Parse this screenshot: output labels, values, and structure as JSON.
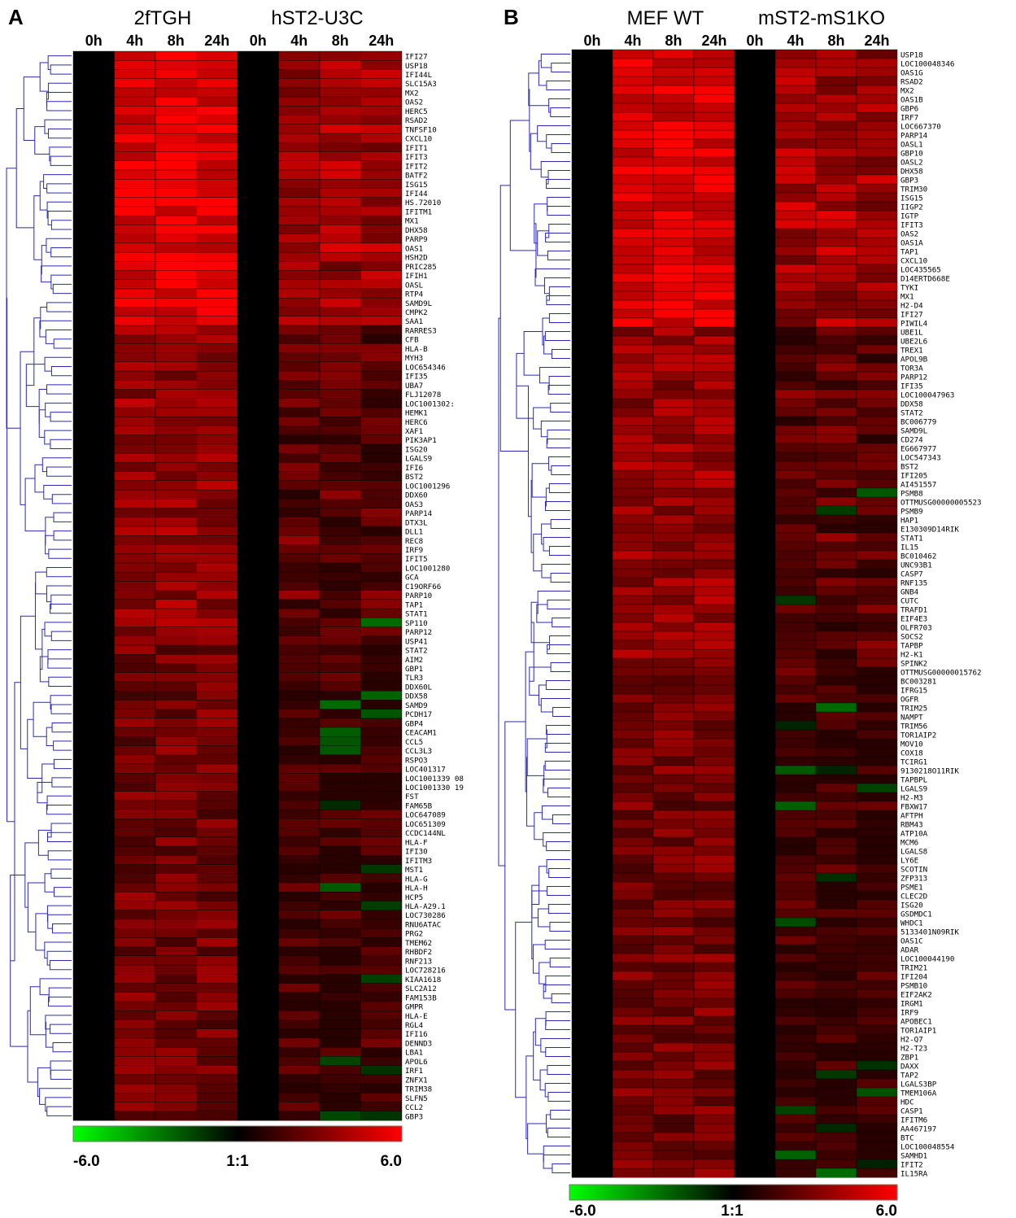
{
  "chart_data": [
    {
      "type": "heatmap",
      "panel": "A",
      "groups": [
        "2fTGH",
        "hST2-U3C"
      ],
      "columns": [
        "0h",
        "4h",
        "8h",
        "24h",
        "0h",
        "4h",
        "8h",
        "24h"
      ],
      "rows": [
        "IFI27",
        "USP18",
        "IFI44L",
        "SLC15A3",
        "MX2",
        "OAS2",
        "HERC5",
        "RSAD2",
        "TNFSF10",
        "CXCL10",
        "IFIT1",
        "IFIT3",
        "IFIT2",
        "BATF2",
        "ISG15",
        "IFI44",
        "HS.72010",
        "IFITM1",
        "MX1",
        "DHX58",
        "PARP9",
        "OAS1",
        "HSH2D",
        "PRIC285",
        "IFIH1",
        "OASL",
        "RTP4",
        "SAMD9L",
        "CMPK2",
        "SAA1",
        "RARRES3",
        "CFB",
        "HLA-B",
        "MYH3",
        "LOC654346",
        "IFI35",
        "UBA7",
        "FLJ12078",
        "LOC1001302:",
        "HEMK1",
        "HERC6",
        "XAF1",
        "PIK3AP1",
        "ISG20",
        "LGALS9",
        "IFI6",
        "BST2",
        "LOC1001296",
        "DDX60",
        "OAS3",
        "PARP14",
        "DTX3L",
        "DLL1",
        "REC8",
        "IRF9",
        "IFIT5",
        "LOC1001280",
        "GCA",
        "C19ORF66",
        "PARP10",
        "TAP1",
        "STAT1",
        "SP110",
        "PARP12",
        "USP41",
        "STAT2",
        "AIM2",
        "GBP1",
        "TLR3",
        "DDX60L",
        "DDX58",
        "SAMD9",
        "PCDH17",
        "GBP4",
        "CEACAM1",
        "CCL5",
        "CCL3L3",
        "RSPO3",
        "LOC401317",
        "LOC1001339 08",
        "LOC1001330 19",
        "FST",
        "FAM65B",
        "LOC647089",
        "LOC651309",
        "CCDC144NL",
        "HLA-F",
        "IFI30",
        "IFITM3",
        "MST1",
        "HLA-G",
        "HLA-H",
        "HCP5",
        "HLA-A29.1",
        "LOC730286",
        "RNU6ATAC",
        "PRG2",
        "TMEM62",
        "RHBDF2",
        "RNF213",
        "LOC728216",
        "KIAA1618",
        "SLC2A12",
        "FAM153B",
        "GMPR",
        "HLA-E",
        "RGL4",
        "IFI16",
        "DENND3",
        "LBA1",
        "APOL6",
        "IRF1",
        "ZNFX1",
        "TRIM38",
        "SLFN5",
        "CCL2",
        "GBP3"
      ],
      "colorscale": {
        "min_label": "-6.0",
        "mid_label": "1:1",
        "max_label": "6.0",
        "min": -6.0,
        "max": 6.0,
        "low_color": "#00ff00",
        "mid_color": "#000000",
        "high_color": "#ff0000"
      }
    },
    {
      "type": "heatmap",
      "panel": "B",
      "groups": [
        "MEF WT",
        "mST2-mS1KO"
      ],
      "columns": [
        "0h",
        "4h",
        "8h",
        "24h",
        "0h",
        "4h",
        "8h",
        "24h"
      ],
      "rows": [
        "USP18",
        "LOC100048346",
        "OAS1G",
        "RSAD2",
        "MX2",
        "OAS1B",
        "GBP6",
        "IRF7",
        "LOC667370",
        "PARP14",
        "OASL1",
        "GBP10",
        "OASL2",
        "DHX58",
        "GBP3",
        "TRIM30",
        "ISG15",
        "IIGP2",
        "IGTP",
        "IFIT3",
        "OAS2",
        "OAS1A",
        "TAP1",
        "CXCL10",
        "LOC435565",
        "D14ERTD668E",
        "TYKI",
        "MX1",
        "H2-D4",
        "IFI27",
        "PIWIL4",
        "UBE1L",
        "UBE2L6",
        "TREX1",
        "APOL9B",
        "TOR3A",
        "PARP12",
        "IFI35",
        "LOC100047963",
        "DDX58",
        "STAT2",
        "BC006779",
        "SAMD9L",
        "CD274",
        "EG667977",
        "LOC547343",
        "BST2",
        "IFI205",
        "AI451557",
        "PSMB8",
        "OTTMUSG00000005523",
        "PSMB9",
        "HAP1",
        "E130309D14RIK",
        "STAT1",
        "IL15",
        "BC010462",
        "UNC93B1",
        "CASP7",
        "RNF135",
        "GNB4",
        "CUTC",
        "TRAFD1",
        "EIF4E3",
        "OLFR703",
        "SOCS2",
        "TAPBP",
        "H2-K1",
        "SPINK2",
        "OTTMUSG00000015762",
        "BC003281",
        "IFRG15",
        "OGFR",
        "TRIM25",
        "NAMPT",
        "TRIM56",
        "TOR1AIP2",
        "MOV10",
        "COX18",
        "TCIRG1",
        "9130218O11RIK",
        "TAPBPL",
        "LGALS9",
        "H2-M3",
        "FBXW17",
        "AFTPH",
        "RBM43",
        "ATP10A",
        "MCM6",
        "LGALS8",
        "LY6E",
        "SCOTIN",
        "ZFP313",
        "PSME1",
        "CLEC2D",
        "ISG20",
        "GSDMDC1",
        "WHDC1",
        "5133401N09RIK",
        "OAS1C",
        "ADAR",
        "LOC100044190",
        "TRIM21",
        "IFI204",
        "PSMB10",
        "EIF2AK2",
        "IRGM1",
        "IRF9",
        "APOBEC1",
        "TOR1AIP1",
        "H2-Q7",
        "H2-T23",
        "ZBP1",
        "DAXX",
        "TAP2",
        "LGALS3BP",
        "TMEM106A",
        "HDC",
        "CASP1",
        "IFITM6",
        "AA467197",
        "BTC",
        "LOC100048554",
        "SAMHD1",
        "IFIT2",
        "IL15RA"
      ],
      "colorscale": {
        "min_label": "-6.0",
        "mid_label": "1:1",
        "max_label": "6.0",
        "min": -6.0,
        "max": 6.0,
        "low_color": "#00ff00",
        "mid_color": "#000000",
        "high_color": "#ff0000"
      }
    }
  ]
}
